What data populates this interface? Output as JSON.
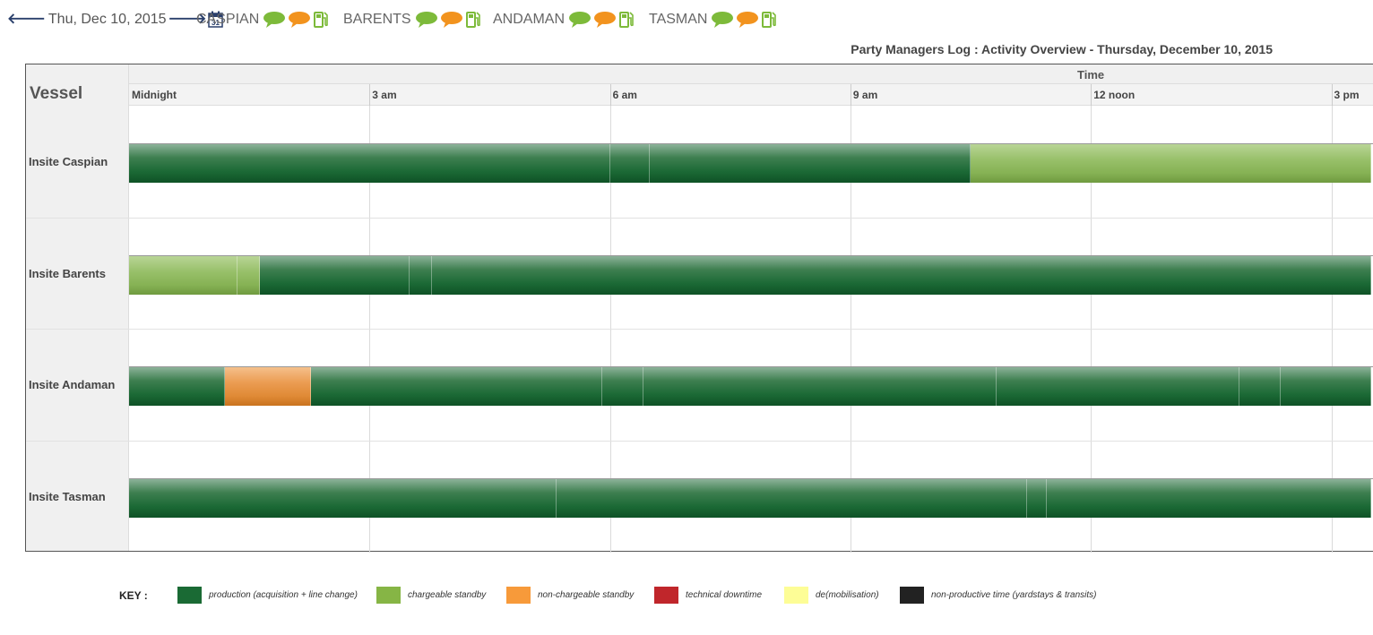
{
  "nav": {
    "prev_arrow": "🡐",
    "date": "Thu, Dec 10, 2015",
    "next_arrow": "🡒",
    "calendar_day": "31",
    "vessels": [
      {
        "label": "CASPIAN"
      },
      {
        "label": "BARENTS"
      },
      {
        "label": "ANDAMAN"
      },
      {
        "label": "TASMAN"
      }
    ]
  },
  "title": "Party Managers Log : Activity Overview - Thursday, December 10, 2015",
  "chart_data": {
    "type": "gantt",
    "header_vessel": "Vessel",
    "header_time": "Time",
    "time_ticks": [
      "Midnight",
      "3 am",
      "6 am",
      "9 am",
      "12 noon",
      "3 pm"
    ],
    "visible_hours": [
      0,
      15.5
    ],
    "rows": [
      {
        "vessel": "Insite Caspian",
        "segments": [
          {
            "start": 0.0,
            "end": 6.0,
            "type": "production"
          },
          {
            "start": 6.0,
            "end": 6.5,
            "type": "production"
          },
          {
            "start": 6.5,
            "end": 10.5,
            "type": "production"
          },
          {
            "start": 10.5,
            "end": 15.5,
            "type": "chargeable"
          }
        ]
      },
      {
        "vessel": "Insite Barents",
        "segments": [
          {
            "start": 0.0,
            "end": 1.35,
            "type": "chargeable"
          },
          {
            "start": 1.35,
            "end": 1.63,
            "type": "chargeable"
          },
          {
            "start": 1.63,
            "end": 3.5,
            "type": "production"
          },
          {
            "start": 3.5,
            "end": 3.78,
            "type": "production"
          },
          {
            "start": 3.78,
            "end": 15.5,
            "type": "production"
          }
        ]
      },
      {
        "vessel": "Insite Andaman",
        "segments": [
          {
            "start": 0.0,
            "end": 1.2,
            "type": "production"
          },
          {
            "start": 1.2,
            "end": 2.27,
            "type": "noncharge"
          },
          {
            "start": 2.27,
            "end": 5.9,
            "type": "production"
          },
          {
            "start": 5.9,
            "end": 6.42,
            "type": "production"
          },
          {
            "start": 6.42,
            "end": 10.82,
            "type": "production"
          },
          {
            "start": 10.82,
            "end": 13.85,
            "type": "production"
          },
          {
            "start": 13.85,
            "end": 14.37,
            "type": "production"
          },
          {
            "start": 14.37,
            "end": 15.5,
            "type": "production"
          }
        ]
      },
      {
        "vessel": "Insite Tasman",
        "segments": [
          {
            "start": 0.0,
            "end": 5.33,
            "type": "production"
          },
          {
            "start": 5.33,
            "end": 11.2,
            "type": "production"
          },
          {
            "start": 11.2,
            "end": 11.45,
            "type": "production"
          },
          {
            "start": 11.45,
            "end": 15.5,
            "type": "production"
          }
        ]
      }
    ]
  },
  "key": {
    "title": "KEY :",
    "items": [
      {
        "type": "production",
        "label": "production (acquisition + line change)",
        "color": "#1a6a34"
      },
      {
        "type": "chargeable",
        "label": "chargeable standby",
        "color": "#86b545"
      },
      {
        "type": "noncharge",
        "label": "non-chargeable standby",
        "color": "#f79a3a"
      },
      {
        "type": "downtime",
        "label": "technical downtime",
        "color": "#c0262b"
      },
      {
        "type": "demob",
        "label": "de(mobilisation)",
        "color": "#fdfd96"
      },
      {
        "type": "nonprod",
        "label": "non-productive time (yardstays & transits)",
        "color": "#222222"
      }
    ]
  }
}
